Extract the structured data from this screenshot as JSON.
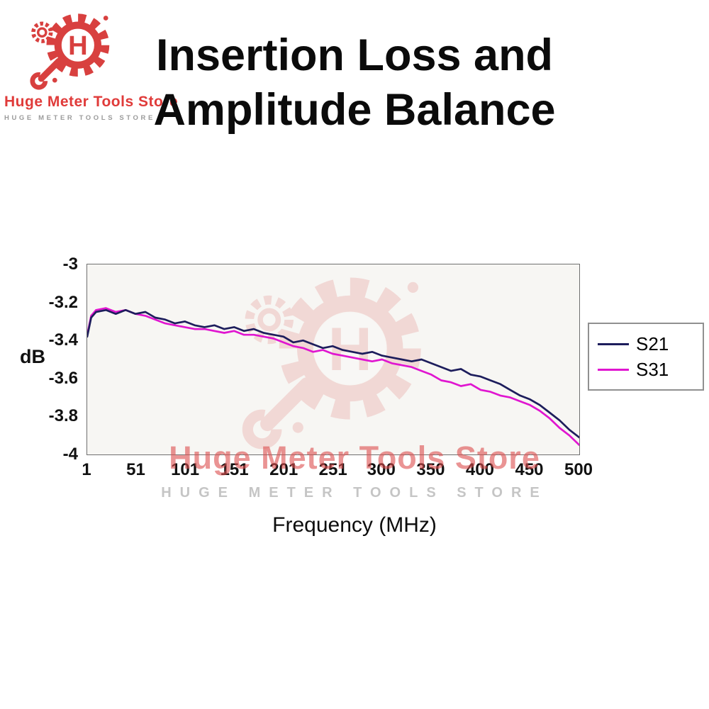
{
  "store": {
    "name": "Huge Meter Tools Store",
    "name_caps": "HUGE METER TOOLS STORE"
  },
  "title": {
    "line1": "Insertion Loss and",
    "line2": "Amplitude Balance"
  },
  "watermark": {
    "text_red": "Huge Meter Tools Store",
    "text_caps": "HUGE METER TOOLS STORE"
  },
  "colors": {
    "brand_red": "#d8403f",
    "s21": "#1d1d5c",
    "s31": "#e016d0"
  },
  "chart_data": {
    "type": "line",
    "title": "Insertion Loss and Amplitude Balance",
    "xlabel": "Frequency (MHz)",
    "ylabel": "dB",
    "xlim": [
      1,
      500
    ],
    "ylim": [
      -4,
      -3
    ],
    "grid": false,
    "legend_position": "right-outside",
    "x_ticks": [
      1,
      51,
      101,
      151,
      201,
      251,
      300,
      350,
      400,
      450,
      500
    ],
    "y_ticks": [
      -3,
      -3.2,
      -3.4,
      -3.6,
      -3.8,
      -4
    ],
    "x": [
      1,
      5,
      10,
      20,
      30,
      40,
      50,
      60,
      70,
      80,
      90,
      100,
      110,
      120,
      130,
      140,
      150,
      160,
      170,
      180,
      190,
      200,
      210,
      220,
      230,
      240,
      250,
      260,
      270,
      280,
      290,
      300,
      310,
      320,
      330,
      340,
      350,
      360,
      370,
      380,
      390,
      400,
      410,
      420,
      430,
      440,
      450,
      460,
      470,
      480,
      490,
      500
    ],
    "series": [
      {
        "name": "S21",
        "color": "#1d1d5c",
        "values": [
          -3.38,
          -3.28,
          -3.25,
          -3.24,
          -3.26,
          -3.24,
          -3.26,
          -3.25,
          -3.28,
          -3.29,
          -3.31,
          -3.3,
          -3.32,
          -3.33,
          -3.32,
          -3.34,
          -3.33,
          -3.35,
          -3.34,
          -3.36,
          -3.37,
          -3.38,
          -3.41,
          -3.4,
          -3.42,
          -3.44,
          -3.43,
          -3.45,
          -3.46,
          -3.47,
          -3.46,
          -3.48,
          -3.49,
          -3.5,
          -3.51,
          -3.5,
          -3.52,
          -3.54,
          -3.56,
          -3.55,
          -3.58,
          -3.59,
          -3.61,
          -3.63,
          -3.66,
          -3.69,
          -3.71,
          -3.74,
          -3.78,
          -3.82,
          -3.87,
          -3.91
        ]
      },
      {
        "name": "S31",
        "color": "#e016d0",
        "values": [
          -3.37,
          -3.27,
          -3.24,
          -3.23,
          -3.25,
          -3.24,
          -3.26,
          -3.27,
          -3.29,
          -3.31,
          -3.32,
          -3.33,
          -3.34,
          -3.34,
          -3.35,
          -3.36,
          -3.35,
          -3.37,
          -3.37,
          -3.38,
          -3.39,
          -3.41,
          -3.43,
          -3.44,
          -3.46,
          -3.45,
          -3.47,
          -3.48,
          -3.49,
          -3.5,
          -3.51,
          -3.5,
          -3.52,
          -3.53,
          -3.54,
          -3.56,
          -3.58,
          -3.61,
          -3.62,
          -3.64,
          -3.63,
          -3.66,
          -3.67,
          -3.69,
          -3.7,
          -3.72,
          -3.74,
          -3.77,
          -3.81,
          -3.86,
          -3.9,
          -3.95
        ]
      }
    ]
  }
}
